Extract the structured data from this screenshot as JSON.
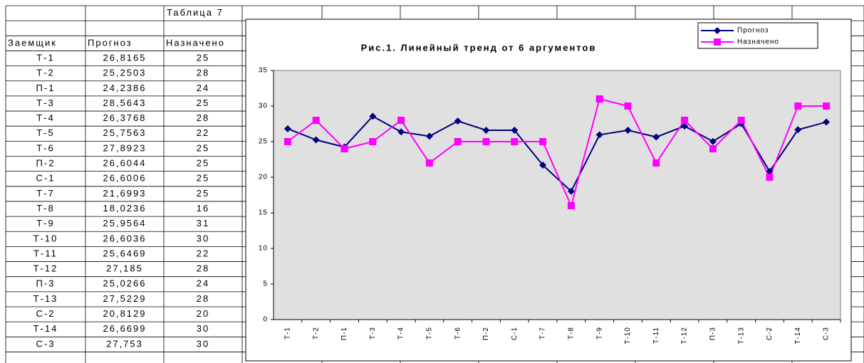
{
  "table": {
    "caption": "Таблица 7",
    "header": [
      "Заемщик",
      "Прогноз",
      "Назначено"
    ],
    "rows": [
      [
        "Т-1",
        "26,8165",
        "25"
      ],
      [
        "Т-2",
        "25,2503",
        "28"
      ],
      [
        "П-1",
        "24,2386",
        "24"
      ],
      [
        "Т-3",
        "28,5643",
        "25"
      ],
      [
        "Т-4",
        "26,3768",
        "28"
      ],
      [
        "Т-5",
        "25,7563",
        "22"
      ],
      [
        "Т-6",
        "27,8923",
        "25"
      ],
      [
        "П-2",
        "26,6044",
        "25"
      ],
      [
        "С-1",
        "26,6006",
        "25"
      ],
      [
        "Т-7",
        "21,6993",
        "25"
      ],
      [
        "Т-8",
        "18,0236",
        "16"
      ],
      [
        "Т-9",
        "25,9564",
        "31"
      ],
      [
        "Т-10",
        "26,6036",
        "30"
      ],
      [
        "Т-11",
        "25,6469",
        "22"
      ],
      [
        "Т-12",
        "27,185",
        "28"
      ],
      [
        "П-3",
        "25,0266",
        "24"
      ],
      [
        "Т-13",
        "27,5229",
        "28"
      ],
      [
        "С-2",
        "20,8129",
        "20"
      ],
      [
        "Т-14",
        "26,6699",
        "30"
      ],
      [
        "С-3",
        "27,753",
        "30"
      ]
    ]
  },
  "chart_data": {
    "type": "line",
    "title": "Рис.1. Линейный тренд от 6 аргументов",
    "categories": [
      "Т-1",
      "Т-2",
      "П-1",
      "Т-3",
      "Т-4",
      "Т-5",
      "Т-6",
      "П-2",
      "С-1",
      "Т-7",
      "Т-8",
      "Т-9",
      "Т-10",
      "Т-11",
      "Т-12",
      "П-3",
      "Т-13",
      "С-2",
      "Т-14",
      "С-3"
    ],
    "series": [
      {
        "name": "Прогноз",
        "color": "#000080",
        "marker": "diamond",
        "values": [
          26.8165,
          25.2503,
          24.2386,
          28.5643,
          26.3768,
          25.7563,
          27.8923,
          26.6044,
          26.6006,
          21.6993,
          18.0236,
          25.9564,
          26.6036,
          25.6469,
          27.185,
          25.0266,
          27.5229,
          20.8129,
          26.6699,
          27.753
        ]
      },
      {
        "name": "Назначено",
        "color": "#ff00ff",
        "marker": "square",
        "values": [
          25,
          28,
          24,
          25,
          28,
          22,
          25,
          25,
          25,
          25,
          16,
          31,
          30,
          22,
          28,
          24,
          28,
          20,
          30,
          30
        ]
      }
    ],
    "ylim": [
      0,
      35
    ],
    "yticks": [
      0,
      5,
      10,
      15,
      20,
      25,
      30,
      35
    ],
    "legend": "top-right",
    "plot_background": "#e0e0e0"
  }
}
